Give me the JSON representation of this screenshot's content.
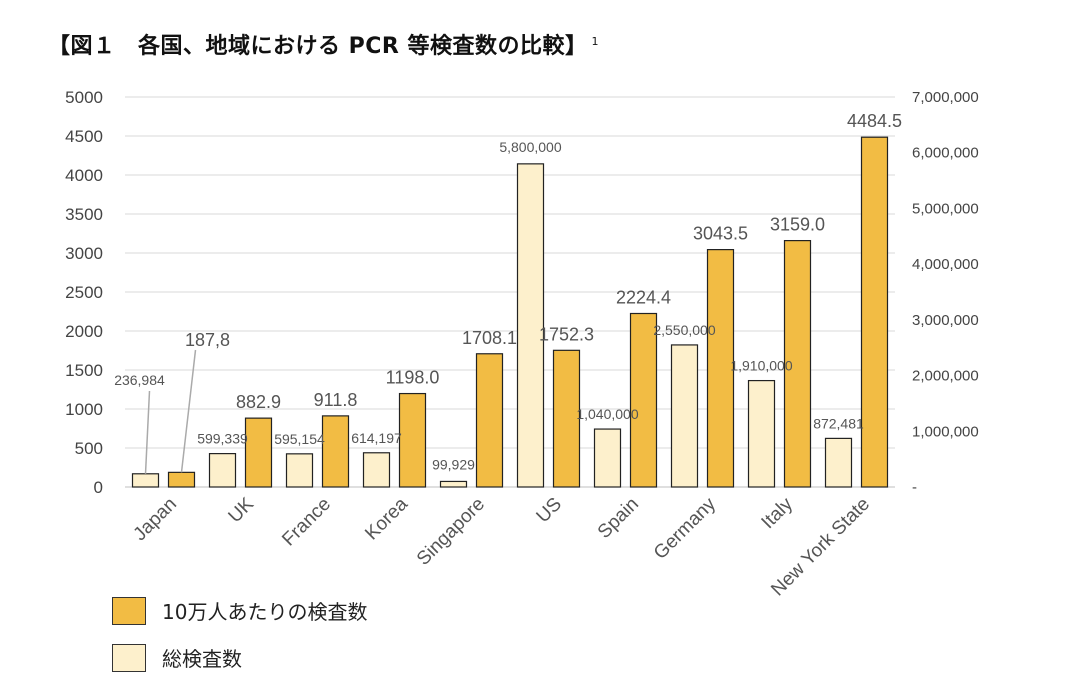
{
  "title": "【図１　各国、地域における PCR 等検査数の比較】",
  "footnote": "1",
  "colors": {
    "per100k": "#f2bc44",
    "total": "#fdf0cc",
    "stroke": "#222222",
    "grid": "#d9d9d9"
  },
  "legend": {
    "per100k_label": "10万人あたりの検査数",
    "total_label": "総検査数"
  },
  "chart_data": {
    "type": "bar",
    "categories": [
      "Japan",
      "UK",
      "France",
      "Korea",
      "Singapore",
      "US",
      "Spain",
      "Germany",
      "Italy",
      "New York State"
    ],
    "series": [
      {
        "name": "総検査数",
        "axis": "right",
        "values": [
          236984,
          599339,
          595154,
          614197,
          99929,
          5800000,
          1040000,
          2550000,
          1910000,
          872481
        ],
        "labels": [
          "236,984",
          "599,339",
          "595,154",
          "614,197",
          "99,929",
          "5,800,000",
          "1,040,000",
          "2,550,000",
          "1,910,000",
          "872,481"
        ]
      },
      {
        "name": "10万人あたりの検査数",
        "axis": "left",
        "values": [
          187.8,
          882.9,
          911.8,
          1198.0,
          1708.1,
          1752.3,
          2224.4,
          3043.5,
          3159.0,
          4484.5
        ],
        "labels": [
          "187,8",
          "882.9",
          "911.8",
          "1198.0",
          "1708.1",
          "1752.3",
          "2224.4",
          "3043.5",
          "3159.0",
          "4484.5"
        ]
      }
    ],
    "y_left": {
      "min": 0,
      "max": 5000,
      "step": 500,
      "ticks": [
        "0",
        "500",
        "1000",
        "1500",
        "2000",
        "2500",
        "3000",
        "3500",
        "4000",
        "4500",
        "5000"
      ]
    },
    "y_right": {
      "min": 0,
      "max": 7000000,
      "step": 1000000,
      "ticks": [
        "-",
        "1,000,000",
        "2,000,000",
        "3,000,000",
        "4,000,000",
        "5,000,000",
        "6,000,000",
        "7,000,000"
      ]
    },
    "grid": true,
    "legend_position": "bottom-left"
  }
}
